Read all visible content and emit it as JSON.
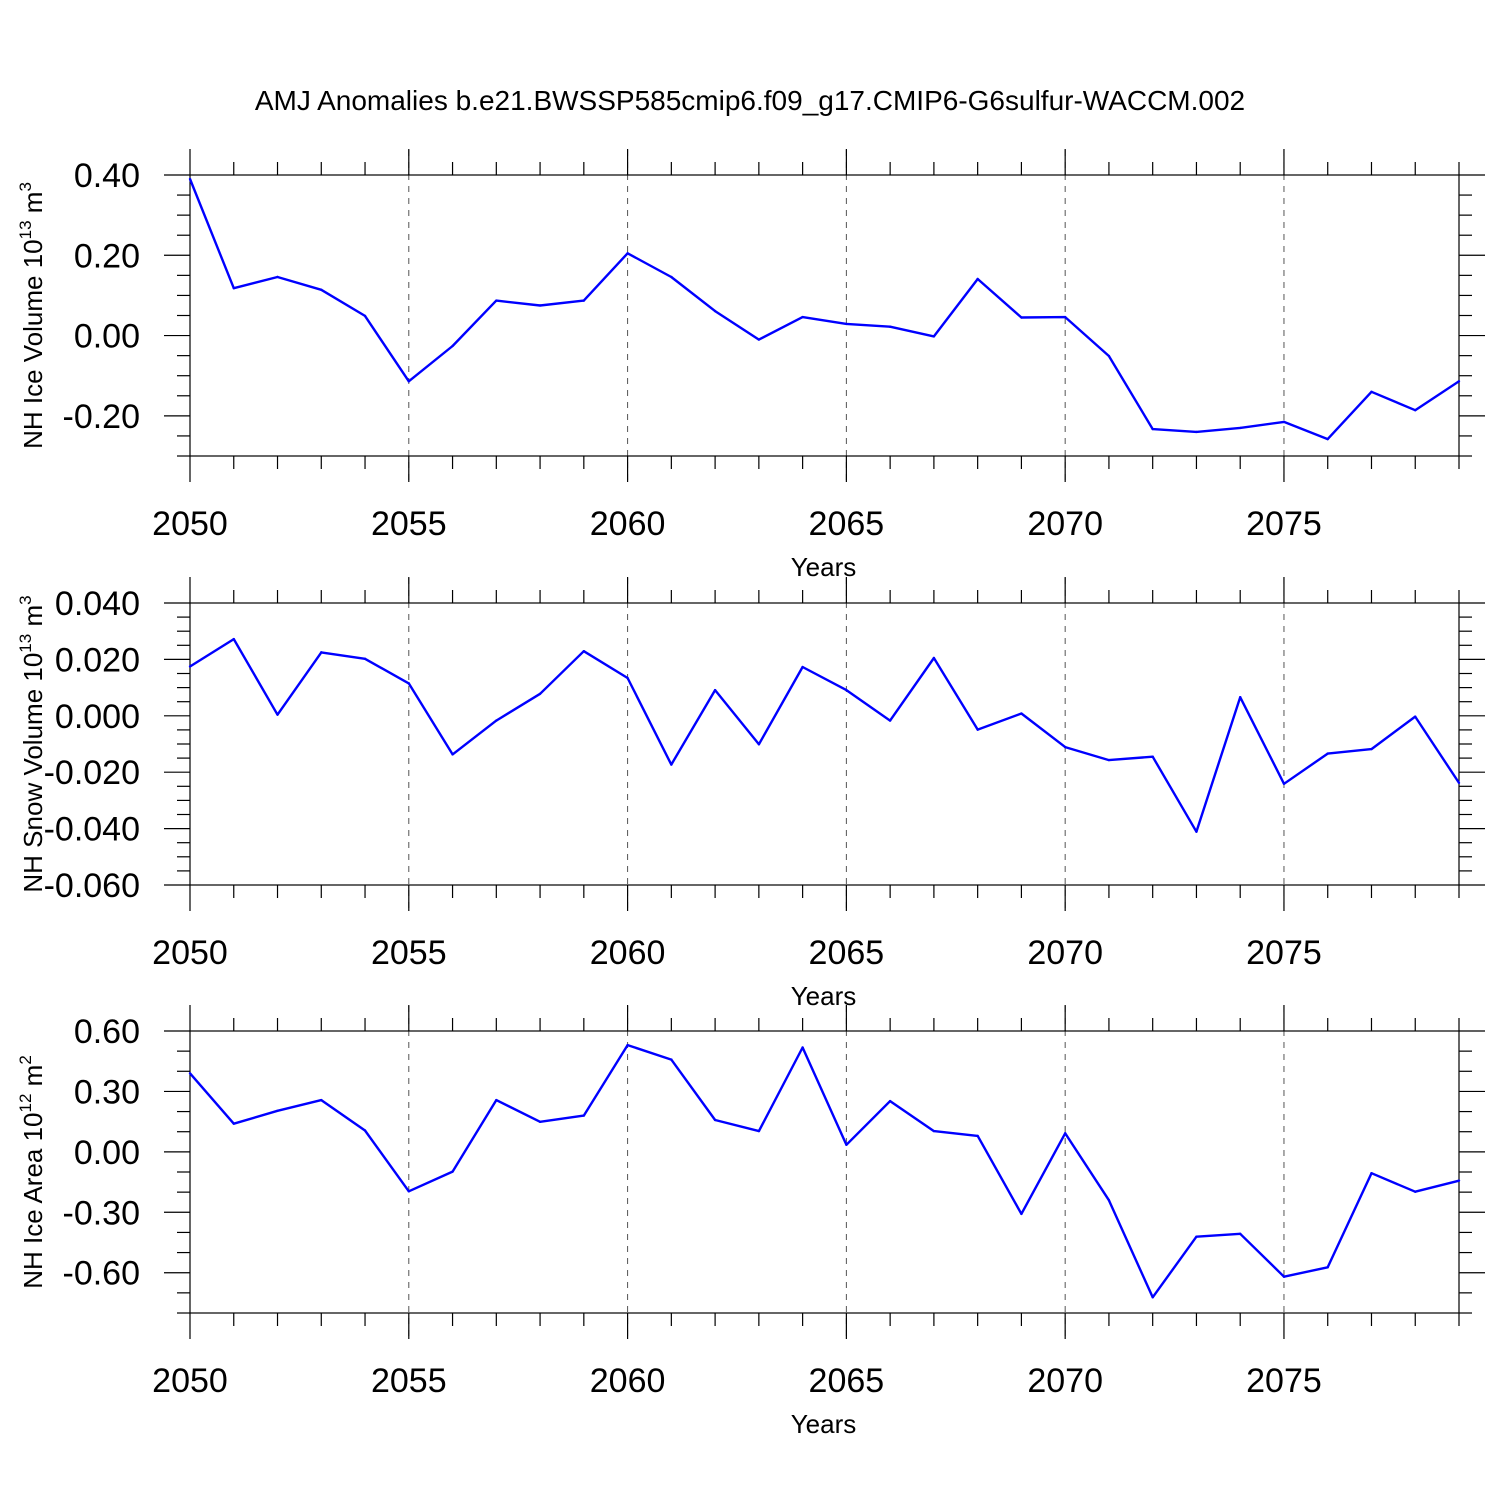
{
  "page": {
    "title": "AMJ Anomalies b.e21.BWSSP585cmip6.f09_g17.CMIP6-G6sulfur-WACCM.002"
  },
  "colors": {
    "series": "#0000ff",
    "axis": "#000000"
  },
  "chart_data": [
    {
      "type": "line",
      "ylabel": "NH Ice Volume 10",
      "ylabel_exp": "13",
      "ylabel_unit": " m",
      "ylabel_unit_exp": "3",
      "xlabel": "Years",
      "xlim": [
        2050,
        2079
      ],
      "ylim": [
        -0.3,
        0.4
      ],
      "yticks": [
        0.4,
        0.2,
        0.0,
        -0.2
      ],
      "ytick_labels": [
        "0.40",
        "0.20",
        "0.00",
        "-0.20"
      ],
      "yminor_step": 0.05,
      "xticks": [
        2050,
        2055,
        2060,
        2065,
        2070,
        2075
      ],
      "xtick_labels": [
        "2050",
        "2055",
        "2060",
        "2065",
        "2070",
        "2075"
      ],
      "grid_x": [
        2055,
        2060,
        2065,
        2070,
        2075
      ],
      "x": [
        2050,
        2051,
        2052,
        2053,
        2054,
        2055,
        2056,
        2057,
        2058,
        2059,
        2060,
        2061,
        2062,
        2063,
        2064,
        2065,
        2066,
        2067,
        2068,
        2069,
        2070,
        2071,
        2072,
        2073,
        2074,
        2075,
        2076,
        2077,
        2078,
        2079
      ],
      "values": [
        0.39,
        0.118,
        0.146,
        0.114,
        0.049,
        -0.114,
        -0.026,
        0.087,
        0.075,
        0.087,
        0.205,
        0.146,
        0.061,
        -0.01,
        0.046,
        0.029,
        0.022,
        -0.002,
        0.141,
        0.045,
        0.046,
        -0.051,
        -0.233,
        -0.24,
        -0.23,
        -0.215,
        -0.258,
        -0.14,
        -0.186,
        -0.114
      ]
    },
    {
      "type": "line",
      "ylabel": "NH Snow Volume 10",
      "ylabel_exp": "13",
      "ylabel_unit": " m",
      "ylabel_unit_exp": "3",
      "xlabel": "Years",
      "xlim": [
        2050,
        2079
      ],
      "ylim": [
        -0.06,
        0.04
      ],
      "yticks": [
        0.04,
        0.02,
        0.0,
        -0.02,
        -0.04,
        -0.06
      ],
      "ytick_labels": [
        "0.040",
        "0.020",
        "0.000",
        "-0.020",
        "-0.040",
        "-0.060"
      ],
      "yminor_step": 0.005,
      "xticks": [
        2050,
        2055,
        2060,
        2065,
        2070,
        2075
      ],
      "xtick_labels": [
        "2050",
        "2055",
        "2060",
        "2065",
        "2070",
        "2075"
      ],
      "grid_x": [
        2055,
        2060,
        2065,
        2070,
        2075
      ],
      "x": [
        2050,
        2051,
        2052,
        2053,
        2054,
        2055,
        2056,
        2057,
        2058,
        2059,
        2060,
        2061,
        2062,
        2063,
        2064,
        2065,
        2066,
        2067,
        2068,
        2069,
        2070,
        2071,
        2072,
        2073,
        2074,
        2075,
        2076,
        2077,
        2078,
        2079
      ],
      "values": [
        0.0175,
        0.0272,
        0.0004,
        0.0225,
        0.0202,
        0.0115,
        -0.0137,
        -0.0017,
        0.0078,
        0.0229,
        0.0134,
        -0.0173,
        0.0091,
        -0.0101,
        0.0173,
        0.0091,
        -0.0017,
        0.0205,
        -0.0049,
        0.0008,
        -0.0111,
        -0.0157,
        -0.0145,
        -0.0411,
        0.0066,
        -0.0241,
        -0.0134,
        -0.0118,
        -0.0003,
        -0.0238
      ]
    },
    {
      "type": "line",
      "ylabel": "NH Ice Area 10",
      "ylabel_exp": "12",
      "ylabel_unit": " m",
      "ylabel_unit_exp": "2",
      "xlabel": "Years",
      "xlim": [
        2050,
        2079
      ],
      "ylim": [
        -0.8,
        0.6
      ],
      "yticks": [
        0.6,
        0.3,
        0.0,
        -0.3,
        -0.6
      ],
      "ytick_labels": [
        "0.60",
        "0.30",
        "0.00",
        "-0.30",
        "-0.60"
      ],
      "yminor_step": 0.1,
      "xticks": [
        2050,
        2055,
        2060,
        2065,
        2070,
        2075
      ],
      "xtick_labels": [
        "2050",
        "2055",
        "2060",
        "2065",
        "2070",
        "2075"
      ],
      "grid_x": [
        2055,
        2060,
        2065,
        2070,
        2075
      ],
      "x": [
        2050,
        2051,
        2052,
        2053,
        2054,
        2055,
        2056,
        2057,
        2058,
        2059,
        2060,
        2061,
        2062,
        2063,
        2064,
        2065,
        2066,
        2067,
        2068,
        2069,
        2070,
        2071,
        2072,
        2073,
        2074,
        2075,
        2076,
        2077,
        2078,
        2079
      ],
      "values": [
        0.39,
        0.14,
        0.204,
        0.257,
        0.106,
        -0.196,
        -0.098,
        0.257,
        0.149,
        0.18,
        0.53,
        0.458,
        0.158,
        0.103,
        0.518,
        0.035,
        0.252,
        0.103,
        0.079,
        -0.308,
        0.092,
        -0.24,
        -0.722,
        -0.421,
        -0.407,
        -0.62,
        -0.573,
        -0.106,
        -0.198,
        -0.143
      ]
    }
  ]
}
